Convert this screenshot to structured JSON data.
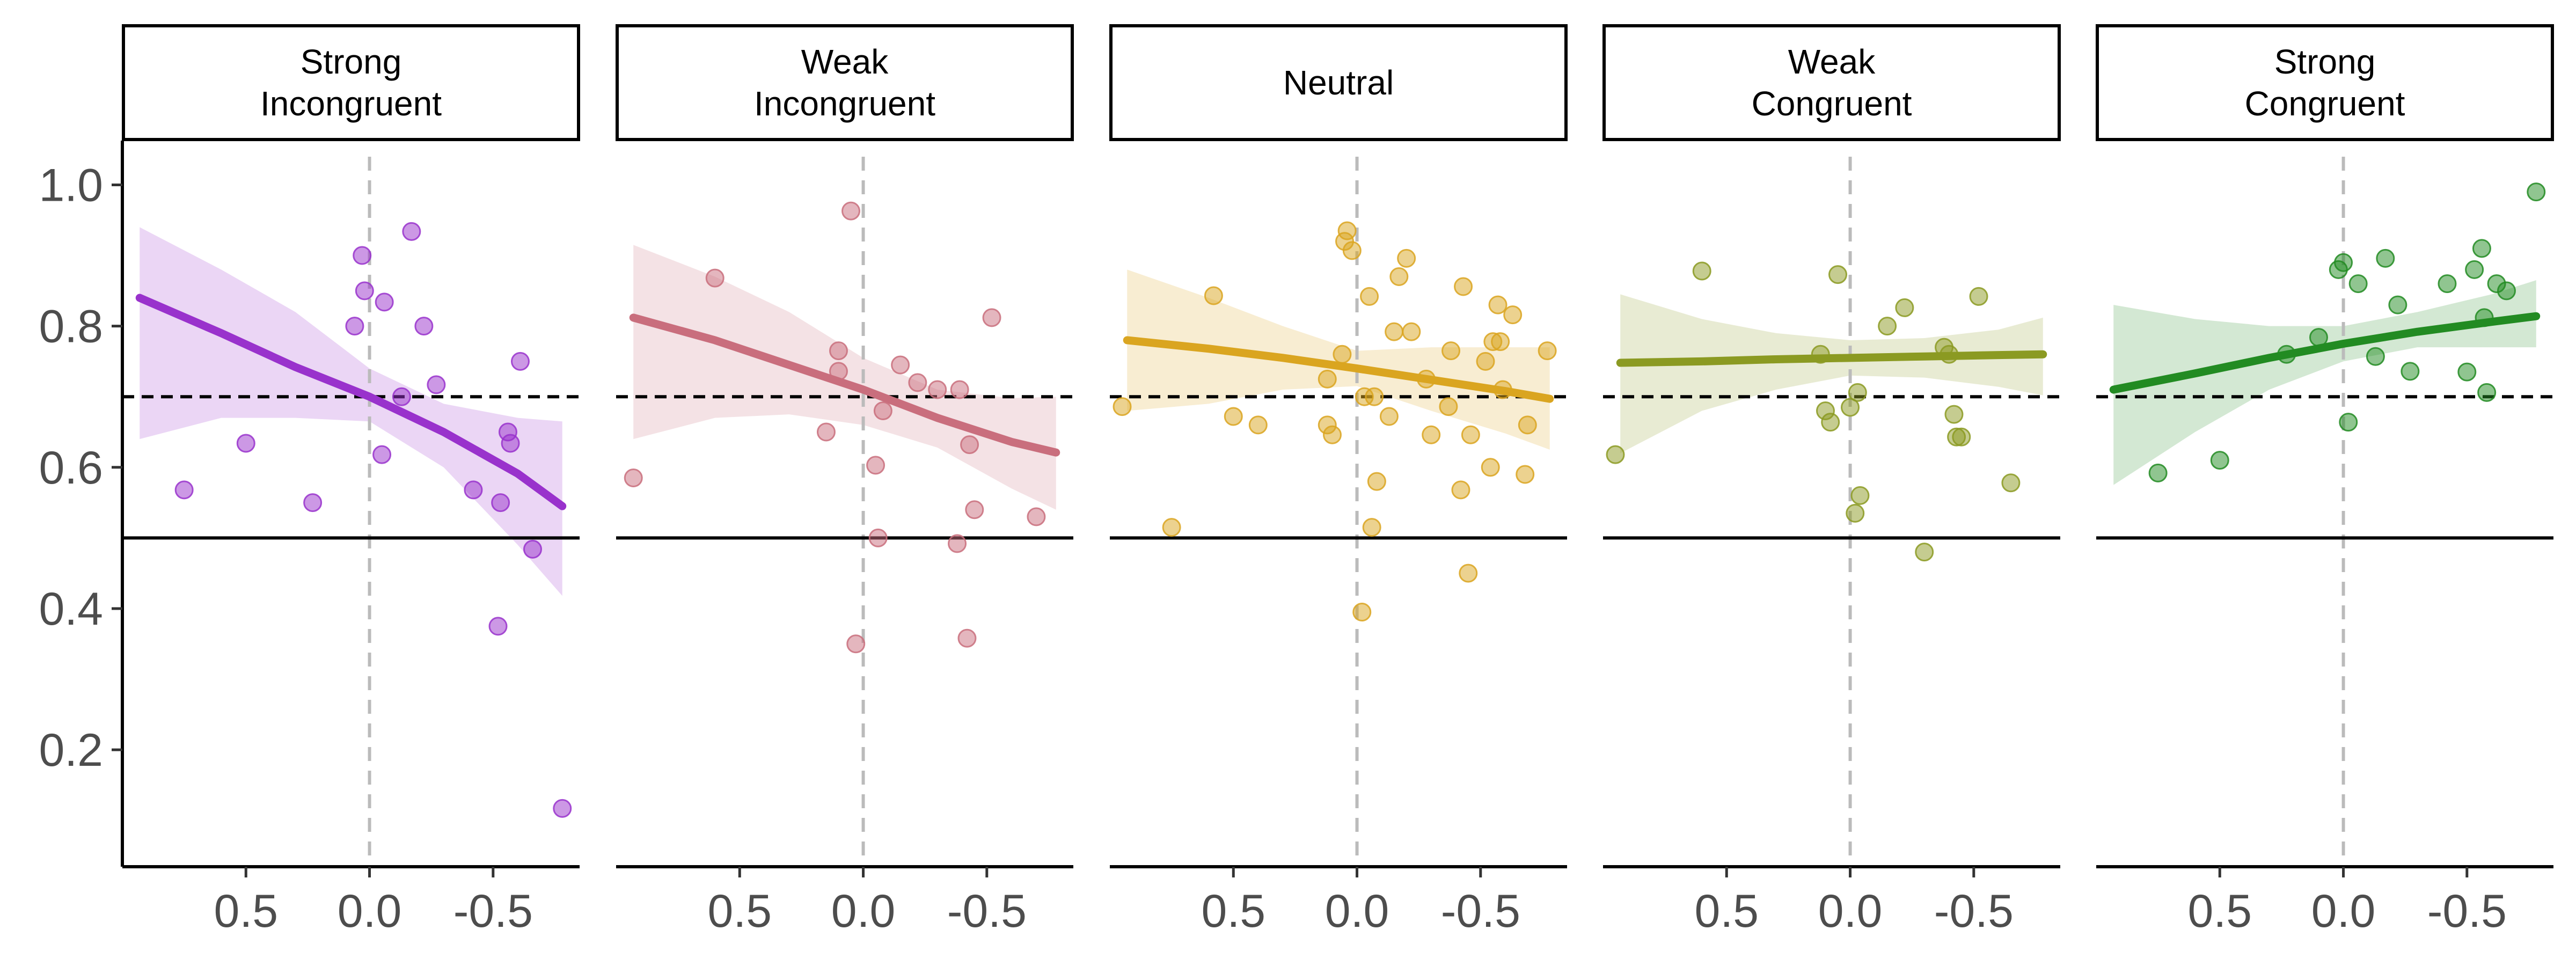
{
  "chart_data": {
    "type": "scatter",
    "layout": "facets",
    "title": "",
    "xlabel": "",
    "ylabel": "",
    "x_reversed": true,
    "xlim": [
      1.0,
      -0.85
    ],
    "ylim": [
      0.08,
      1.03
    ],
    "x_ticks": [
      0.5,
      0.0,
      -0.5
    ],
    "x_tick_labels": [
      "0.5",
      "0.0",
      "-0.5"
    ],
    "y_ticks": [
      0.2,
      0.4,
      0.6,
      0.8,
      1.0
    ],
    "y_tick_labels": [
      "0.2",
      "0.4",
      "0.6",
      "0.8",
      "1.0"
    ],
    "reference_lines": {
      "y_solid": 0.5,
      "y_dashed": 0.7,
      "x_dashed": 0.0
    },
    "grid": false,
    "legend": "none",
    "facets": [
      {
        "label": "Strong\nIncongruent",
        "label_lines": [
          "Strong",
          "Incongruent"
        ],
        "color": "#9932CC",
        "points": [
          [
            0.75,
            0.568
          ],
          [
            0.5,
            0.634
          ],
          [
            0.23,
            0.55
          ],
          [
            0.06,
            0.8
          ],
          [
            0.03,
            0.9
          ],
          [
            0.02,
            0.85
          ],
          [
            -0.05,
            0.618
          ],
          [
            -0.06,
            0.834
          ],
          [
            -0.13,
            0.7
          ],
          [
            -0.17,
            0.934
          ],
          [
            -0.22,
            0.8
          ],
          [
            -0.27,
            0.717
          ],
          [
            -0.42,
            0.568
          ],
          [
            -0.52,
            0.375
          ],
          [
            -0.53,
            0.55
          ],
          [
            -0.56,
            0.65
          ],
          [
            -0.57,
            0.634
          ],
          [
            -0.61,
            0.75
          ],
          [
            -0.66,
            0.484
          ],
          [
            -0.78,
            0.117
          ]
        ],
        "fit": [
          [
            0.93,
            0.84
          ],
          [
            0.6,
            0.79
          ],
          [
            0.3,
            0.742
          ],
          [
            0.0,
            0.7
          ],
          [
            -0.3,
            0.65
          ],
          [
            -0.6,
            0.591
          ],
          [
            -0.78,
            0.545
          ]
        ],
        "band_upper": [
          [
            0.93,
            0.94
          ],
          [
            0.6,
            0.88
          ],
          [
            0.3,
            0.82
          ],
          [
            0.0,
            0.74
          ],
          [
            -0.3,
            0.69
          ],
          [
            -0.6,
            0.67
          ],
          [
            -0.78,
            0.665
          ]
        ],
        "band_lower": [
          [
            0.93,
            0.64
          ],
          [
            0.6,
            0.67
          ],
          [
            0.3,
            0.67
          ],
          [
            0.0,
            0.665
          ],
          [
            -0.3,
            0.6
          ],
          [
            -0.6,
            0.49
          ],
          [
            -0.78,
            0.418
          ]
        ]
      },
      {
        "label": "Weak\nIncongruent",
        "label_lines": [
          "Weak",
          "Incongruent"
        ],
        "color": "#C96E7D",
        "points": [
          [
            0.93,
            0.585
          ],
          [
            0.6,
            0.868
          ],
          [
            0.15,
            0.65
          ],
          [
            0.1,
            0.736
          ],
          [
            0.1,
            0.765
          ],
          [
            0.05,
            0.963
          ],
          [
            0.03,
            0.35
          ],
          [
            -0.05,
            0.603
          ],
          [
            -0.06,
            0.5
          ],
          [
            -0.08,
            0.68
          ],
          [
            -0.15,
            0.745
          ],
          [
            -0.22,
            0.72
          ],
          [
            -0.3,
            0.71
          ],
          [
            -0.38,
            0.492
          ],
          [
            -0.39,
            0.71
          ],
          [
            -0.42,
            0.358
          ],
          [
            -0.43,
            0.632
          ],
          [
            -0.45,
            0.54
          ],
          [
            -0.52,
            0.812
          ],
          [
            -0.7,
            0.53
          ]
        ],
        "fit": [
          [
            0.93,
            0.812
          ],
          [
            0.6,
            0.78
          ],
          [
            0.3,
            0.745
          ],
          [
            0.0,
            0.71
          ],
          [
            -0.3,
            0.67
          ],
          [
            -0.6,
            0.636
          ],
          [
            -0.78,
            0.621
          ]
        ],
        "band_upper": [
          [
            0.93,
            0.915
          ],
          [
            0.6,
            0.87
          ],
          [
            0.3,
            0.82
          ],
          [
            0.0,
            0.755
          ],
          [
            -0.3,
            0.71
          ],
          [
            -0.6,
            0.698
          ],
          [
            -0.78,
            0.7
          ]
        ],
        "band_lower": [
          [
            0.93,
            0.64
          ],
          [
            0.6,
            0.67
          ],
          [
            0.3,
            0.675
          ],
          [
            0.0,
            0.66
          ],
          [
            -0.3,
            0.628
          ],
          [
            -0.6,
            0.57
          ],
          [
            -0.78,
            0.54
          ]
        ]
      },
      {
        "label": "Neutral",
        "label_lines": [
          "Neutral"
        ],
        "color": "#DAA520",
        "points": [
          [
            0.95,
            0.686
          ],
          [
            0.75,
            0.515
          ],
          [
            0.58,
            0.843
          ],
          [
            0.5,
            0.672
          ],
          [
            0.4,
            0.66
          ],
          [
            0.12,
            0.66
          ],
          [
            0.12,
            0.725
          ],
          [
            0.1,
            0.646
          ],
          [
            0.06,
            0.76
          ],
          [
            0.05,
            0.92
          ],
          [
            0.04,
            0.935
          ],
          [
            0.02,
            0.907
          ],
          [
            -0.02,
            0.395
          ],
          [
            -0.03,
            0.7
          ],
          [
            -0.05,
            0.842
          ],
          [
            -0.06,
            0.515
          ],
          [
            -0.07,
            0.7
          ],
          [
            -0.08,
            0.58
          ],
          [
            -0.13,
            0.672
          ],
          [
            -0.15,
            0.792
          ],
          [
            -0.17,
            0.87
          ],
          [
            -0.2,
            0.896
          ],
          [
            -0.22,
            0.792
          ],
          [
            -0.28,
            0.725
          ],
          [
            -0.3,
            0.646
          ],
          [
            -0.37,
            0.686
          ],
          [
            -0.38,
            0.765
          ],
          [
            -0.42,
            0.568
          ],
          [
            -0.43,
            0.856
          ],
          [
            -0.45,
            0.45
          ],
          [
            -0.46,
            0.646
          ],
          [
            -0.52,
            0.75
          ],
          [
            -0.54,
            0.6
          ],
          [
            -0.55,
            0.778
          ],
          [
            -0.57,
            0.83
          ],
          [
            -0.58,
            0.778
          ],
          [
            -0.59,
            0.71
          ],
          [
            -0.63,
            0.816
          ],
          [
            -0.68,
            0.59
          ],
          [
            -0.69,
            0.66
          ],
          [
            -0.77,
            0.765
          ]
        ],
        "fit": [
          [
            0.93,
            0.78
          ],
          [
            0.6,
            0.768
          ],
          [
            0.3,
            0.755
          ],
          [
            0.0,
            0.74
          ],
          [
            -0.3,
            0.724
          ],
          [
            -0.6,
            0.708
          ],
          [
            -0.78,
            0.697
          ]
        ],
        "band_upper": [
          [
            0.93,
            0.88
          ],
          [
            0.6,
            0.84
          ],
          [
            0.3,
            0.8
          ],
          [
            0.0,
            0.765
          ],
          [
            -0.3,
            0.77
          ],
          [
            -0.6,
            0.77
          ],
          [
            -0.78,
            0.77
          ]
        ],
        "band_lower": [
          [
            0.93,
            0.68
          ],
          [
            0.6,
            0.69
          ],
          [
            0.3,
            0.71
          ],
          [
            0.0,
            0.715
          ],
          [
            -0.3,
            0.68
          ],
          [
            -0.6,
            0.648
          ],
          [
            -0.78,
            0.625
          ]
        ]
      },
      {
        "label": "Weak\nCongruent",
        "label_lines": [
          "Weak",
          "Congruent"
        ],
        "color": "#8B9A22",
        "points": [
          [
            0.95,
            0.618
          ],
          [
            0.6,
            0.878
          ],
          [
            0.12,
            0.76
          ],
          [
            0.1,
            0.68
          ],
          [
            0.08,
            0.664
          ],
          [
            0.05,
            0.873
          ],
          [
            0.0,
            0.685
          ],
          [
            -0.02,
            0.535
          ],
          [
            -0.03,
            0.706
          ],
          [
            -0.04,
            0.56
          ],
          [
            -0.15,
            0.8
          ],
          [
            -0.22,
            0.826
          ],
          [
            -0.3,
            0.48
          ],
          [
            -0.38,
            0.77
          ],
          [
            -0.4,
            0.76
          ],
          [
            -0.42,
            0.675
          ],
          [
            -0.43,
            0.643
          ],
          [
            -0.45,
            0.643
          ],
          [
            -0.52,
            0.842
          ],
          [
            -0.65,
            0.578
          ]
        ],
        "fit": [
          [
            0.93,
            0.748
          ],
          [
            0.6,
            0.75
          ],
          [
            0.3,
            0.753
          ],
          [
            0.0,
            0.755
          ],
          [
            -0.3,
            0.757
          ],
          [
            -0.6,
            0.759
          ],
          [
            -0.78,
            0.76
          ]
        ],
        "band_upper": [
          [
            0.93,
            0.845
          ],
          [
            0.6,
            0.81
          ],
          [
            0.3,
            0.79
          ],
          [
            0.0,
            0.78
          ],
          [
            -0.3,
            0.783
          ],
          [
            -0.6,
            0.795
          ],
          [
            -0.78,
            0.812
          ]
        ],
        "band_lower": [
          [
            0.93,
            0.62
          ],
          [
            0.6,
            0.68
          ],
          [
            0.3,
            0.71
          ],
          [
            0.0,
            0.73
          ],
          [
            -0.3,
            0.727
          ],
          [
            -0.6,
            0.714
          ],
          [
            -0.78,
            0.702
          ]
        ]
      },
      {
        "label": "Strong\nCongruent",
        "label_lines": [
          "Strong",
          "Congruent"
        ],
        "color": "#228B22",
        "points": [
          [
            0.75,
            0.592
          ],
          [
            0.5,
            0.61
          ],
          [
            0.23,
            0.76
          ],
          [
            0.1,
            0.784
          ],
          [
            0.02,
            0.88
          ],
          [
            0.0,
            0.89
          ],
          [
            -0.02,
            0.664
          ],
          [
            -0.06,
            0.86
          ],
          [
            -0.13,
            0.757
          ],
          [
            -0.17,
            0.896
          ],
          [
            -0.22,
            0.83
          ],
          [
            -0.27,
            0.736
          ],
          [
            -0.42,
            0.86
          ],
          [
            -0.5,
            0.735
          ],
          [
            -0.53,
            0.88
          ],
          [
            -0.56,
            0.91
          ],
          [
            -0.57,
            0.812
          ],
          [
            -0.58,
            0.706
          ],
          [
            -0.62,
            0.86
          ],
          [
            -0.66,
            0.85
          ],
          [
            -0.78,
            0.99
          ]
        ],
        "fit": [
          [
            0.93,
            0.71
          ],
          [
            0.6,
            0.733
          ],
          [
            0.3,
            0.755
          ],
          [
            0.0,
            0.775
          ],
          [
            -0.3,
            0.792
          ],
          [
            -0.6,
            0.806
          ],
          [
            -0.78,
            0.814
          ]
        ],
        "band_upper": [
          [
            0.93,
            0.83
          ],
          [
            0.6,
            0.81
          ],
          [
            0.3,
            0.8
          ],
          [
            0.0,
            0.8
          ],
          [
            -0.3,
            0.82
          ],
          [
            -0.6,
            0.845
          ],
          [
            -0.78,
            0.865
          ]
        ],
        "band_lower": [
          [
            0.93,
            0.575
          ],
          [
            0.6,
            0.65
          ],
          [
            0.3,
            0.71
          ],
          [
            0.0,
            0.75
          ],
          [
            -0.3,
            0.77
          ],
          [
            -0.6,
            0.77
          ],
          [
            -0.78,
            0.77
          ]
        ]
      }
    ]
  }
}
